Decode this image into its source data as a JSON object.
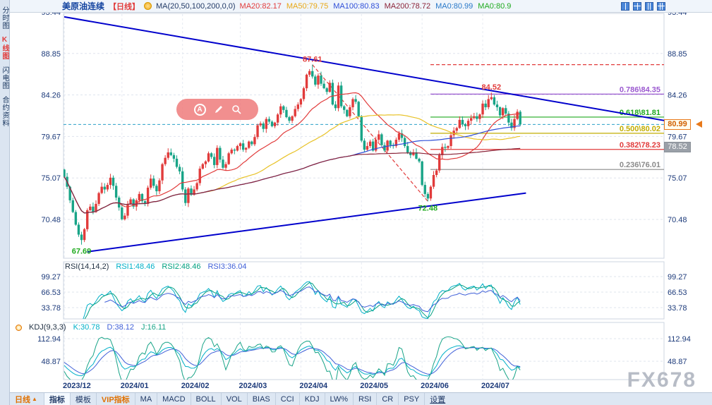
{
  "header": {
    "symbol": "美原油连续",
    "period_tag": "【日线】",
    "ma_param": "MA(20,50,100,200,0,0)",
    "ma_values": [
      {
        "label": "MA20:82.17",
        "color": "#e13b3b"
      },
      {
        "label": "MA50:79.75",
        "color": "#e8a817"
      },
      {
        "label": "MA100:80.83",
        "color": "#2f4fd8"
      },
      {
        "label": "MA200:78.72",
        "color": "#8b2439"
      },
      {
        "label": "MA0:80.99",
        "color": "#2878c8"
      },
      {
        "label": "MA0:80.9",
        "color": "#1faa1f"
      }
    ]
  },
  "sidebar": {
    "tabs": [
      {
        "label": "分时图",
        "active": false
      },
      {
        "label": "K线图",
        "active": true
      },
      {
        "label": "闪电图",
        "active": false
      },
      {
        "label": "合约资料",
        "active": false
      }
    ]
  },
  "toolbar": {
    "period": "日线",
    "items": [
      "指标",
      "模板",
      "VIP指标",
      "MA",
      "MACD",
      "BOLL",
      "VOL",
      "BIAS",
      "CCI",
      "KDJ",
      "LW%",
      "RSI",
      "CR",
      "PSY",
      "设置"
    ],
    "item_keys": [
      "indicators",
      "templates",
      "vip-indicators",
      "ma",
      "macd",
      "boll",
      "vol",
      "bias",
      "cci",
      "kdj",
      "lw",
      "rsi",
      "cr",
      "psy",
      "settings"
    ]
  },
  "watermark": "FX678",
  "chart_data": {
    "type": "candlestick",
    "title": "美原油连续 日线 (WTI Crude Oil Continuous, Daily)",
    "x_labels": [
      "2023/12",
      "2024/01",
      "2024/02",
      "2024/03",
      "2024/04",
      "2024/05",
      "2024/06",
      "2024/07"
    ],
    "month_start_indices": [
      0,
      20,
      41,
      61,
      82,
      103,
      124,
      145
    ],
    "y_ticks_main": [
      93.44,
      88.85,
      84.26,
      79.67,
      75.07,
      70.48
    ],
    "first_open": 76.0,
    "closes": [
      75.2,
      74.1,
      72.6,
      71.3,
      69.9,
      68.8,
      68.2,
      69.4,
      71.5,
      71.9,
      71.3,
      72.2,
      73.4,
      74.1,
      73.8,
      74.3,
      75.1,
      74.2,
      72.9,
      71.8,
      70.5,
      70.9,
      72.2,
      72.7,
      71.9,
      72.6,
      73.3,
      72.5,
      72.2,
      74.0,
      75.0,
      74.2,
      73.6,
      74.8,
      76.6,
      77.3,
      77.9,
      77.6,
      77.2,
      76.3,
      75.8,
      73.8,
      72.3,
      73.9,
      73.2,
      73.8,
      74.5,
      76.1,
      76.6,
      76.9,
      77.8,
      77.4,
      76.5,
      78.4,
      77.1,
      76.2,
      76.6,
      77.8,
      78.2,
      78.1,
      78.6,
      78.9,
      78.2,
      78.4,
      79.1,
      78.8,
      79.6,
      80.9,
      81.1,
      80.5,
      81.6,
      81.3,
      80.8,
      81.2,
      82.1,
      83.0,
      82.6,
      81.8,
      81.4,
      81.9,
      82.7,
      83.2,
      83.8,
      85.0,
      86.5,
      86.9,
      86.3,
      85.4,
      86.4,
      85.5,
      85.0,
      84.6,
      85.6,
      83.2,
      82.8,
      85.3,
      83.0,
      82.6,
      81.9,
      82.9,
      83.8,
      83.5,
      81.9,
      79.2,
      78.2,
      78.6,
      79.1,
      78.1,
      79.3,
      79.9,
      78.7,
      78.1,
      79.2,
      78.7,
      78.6,
      79.3,
      80.0,
      79.5,
      78.6,
      77.9,
      77.6,
      77.9,
      77.2,
      76.9,
      74.3,
      73.3,
      72.8,
      74.1,
      75.4,
      75.9,
      77.6,
      78.5,
      78.4,
      78.6,
      79.8,
      80.3,
      80.6,
      81.5,
      81.0,
      80.8,
      81.4,
      81.7,
      81.9,
      81.6,
      82.1,
      83.3,
      82.9,
      83.8,
      84.0,
      83.2,
      82.9,
      82.0,
      82.8,
      82.2,
      81.2,
      80.6,
      81.6,
      82.4,
      80.99
    ],
    "wick_overrides": [
      {
        "i": 6,
        "low": 67.69
      },
      {
        "i": 86,
        "high": 87.61
      },
      {
        "i": 126,
        "low": 72.48
      },
      {
        "i": 148,
        "high": 84.52
      }
    ],
    "markers": [
      {
        "i": 86,
        "value": 87.61,
        "text": "87.61",
        "color": "#e13b3b",
        "pos": "above"
      },
      {
        "i": 148,
        "value": 84.52,
        "text": "84.52",
        "color": "#e13b3b",
        "pos": "above"
      },
      {
        "i": 126,
        "value": 72.48,
        "text": "72.48",
        "color": "#1faa1f",
        "pos": "below"
      },
      {
        "i": 6,
        "value": 67.69,
        "text": "67.69",
        "color": "#1faa1f",
        "pos": "below"
      }
    ],
    "fib_levels": [
      {
        "label": "0.786\\84.35",
        "value": 84.35,
        "color": "#9b59d0",
        "style": "solid"
      },
      {
        "label": "0.618\\81.81",
        "value": 81.81,
        "color": "#1faa1f",
        "style": "solid"
      },
      {
        "label": "0.500\\80.02",
        "value": 80.02,
        "color": "#c2ae00",
        "style": "solid"
      },
      {
        "label": "0.382\\78.23",
        "value": 78.23,
        "color": "#e13b3b",
        "style": "solid"
      },
      {
        "label": "0.236\\76.01",
        "value": 76.01,
        "color": "#8a8a8a",
        "style": "solid"
      },
      {
        "label": "",
        "value": 87.61,
        "color": "#e13b3b",
        "style": "dashed"
      }
    ],
    "trendlines": [
      {
        "i1": 0,
        "v1": 92.9,
        "i2": 212,
        "v2": 81.2,
        "color": "#0000cc",
        "width": 2
      },
      {
        "i1": 8,
        "v1": 66.9,
        "i2": 160,
        "v2": 73.4,
        "color": "#0000cc",
        "width": 2
      }
    ],
    "decline_line": {
      "i1": 86,
      "v1": 87.61,
      "i2": 126,
      "v2": 72.48,
      "color": "#e13b3b"
    },
    "current_price": {
      "value": 80.99,
      "line_color": "#2aa0c8"
    },
    "secondary_badge": {
      "value": 78.52
    },
    "candle_up": "#e13b3b",
    "candle_down": "#18a487",
    "grid_color": "#dfe4ee",
    "axis_color": "#1c3a7a",
    "ma_colors": {
      "ma20": "#e13b3b",
      "ma50": "#e8c227",
      "ma100": "#2f4fd8",
      "ma200": "#8b2439"
    },
    "rsi": {
      "param": "RSI(14,14,2)",
      "labels": [
        {
          "text": "RSI1:48.46",
          "color": "#00b0c8"
        },
        {
          "text": "RSI2:48.46",
          "color": "#00a080"
        },
        {
          "text": "RSI3:36.04",
          "color": "#4060d8"
        }
      ],
      "y_ticks": [
        99.27,
        66.53,
        33.78
      ]
    },
    "kdj": {
      "param": "KDJ(9,3,3)",
      "labels": [
        {
          "text": "K:30.78",
          "color": "#00b0c8"
        },
        {
          "text": "D:38.12",
          "color": "#4060d8"
        },
        {
          "text": "J:16.11",
          "color": "#18a487"
        }
      ],
      "y_ticks": [
        112.94,
        48.87
      ]
    }
  }
}
